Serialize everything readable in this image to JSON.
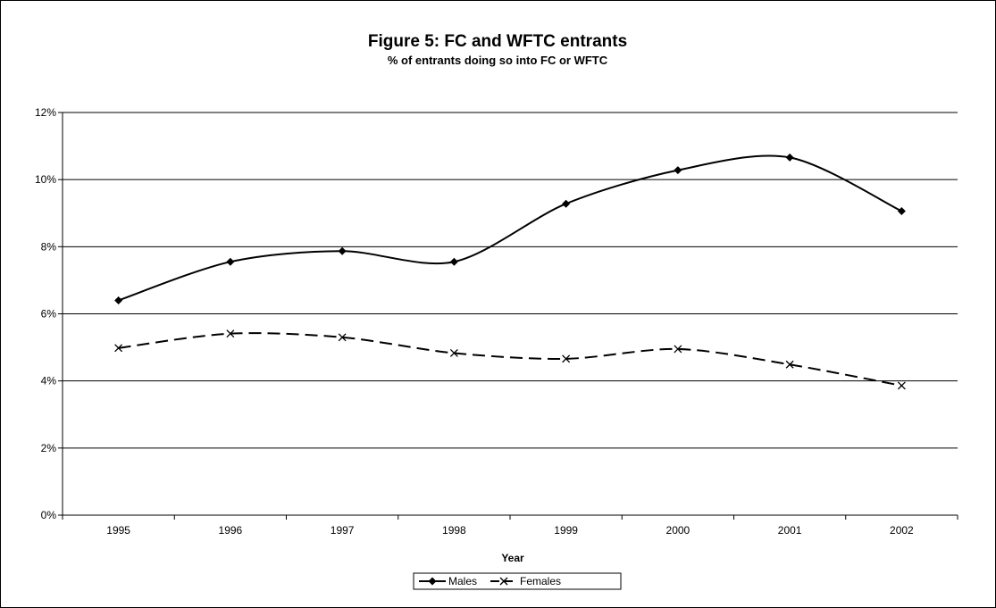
{
  "chart_data": {
    "type": "line",
    "title": "Figure 5: FC and WFTC entrants",
    "subtitle": "% of entrants doing so into FC or WFTC",
    "xlabel": "Year",
    "ylabel": "",
    "categories": [
      "1995",
      "1996",
      "1997",
      "1998",
      "1999",
      "2000",
      "2001",
      "2002"
    ],
    "y_ticks": [
      "0%",
      "2%",
      "4%",
      "6%",
      "8%",
      "10%",
      "12%"
    ],
    "ylim": [
      0,
      12
    ],
    "y_unit": "%",
    "grid": "horizontal",
    "legend_position": "bottom",
    "series": [
      {
        "name": "Males",
        "values": [
          6.4,
          7.55,
          7.87,
          7.55,
          9.28,
          10.28,
          10.66,
          9.06
        ],
        "marker": "diamond",
        "line_style": "solid",
        "color": "#000000"
      },
      {
        "name": "Females",
        "values": [
          4.98,
          5.41,
          5.3,
          4.83,
          4.66,
          4.95,
          4.49,
          3.86
        ],
        "marker": "x",
        "line_style": "dashed",
        "color": "#000000"
      }
    ]
  }
}
